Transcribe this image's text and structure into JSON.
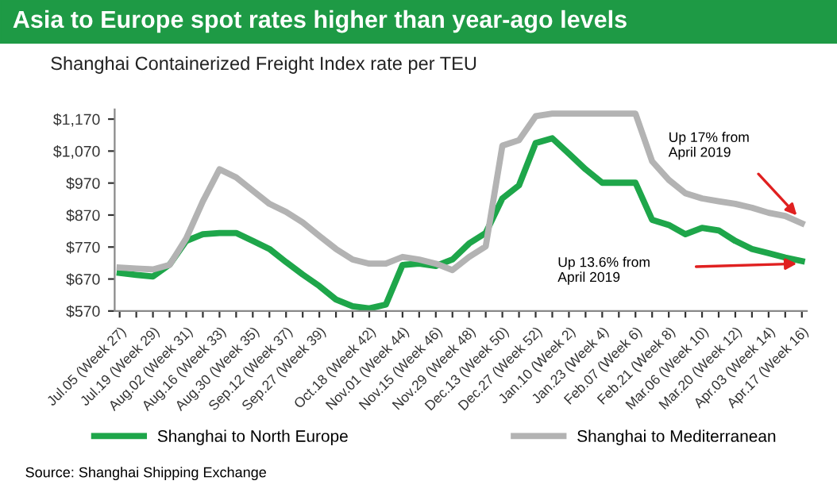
{
  "chart_data": {
    "type": "line",
    "title": "Asia to Europe spot rates higher than year-ago levels",
    "subtitle": "Shanghai Containerized Freight Index rate per TEU",
    "categories": [
      "Jul.05 (Week 27)",
      null,
      "Jul.19 (Week 29)",
      null,
      "Aug.02 (Week 31)",
      null,
      "Aug.16 (Week 33)",
      null,
      "Aug.30 (Week 35)",
      null,
      "Sep.12 (Week 37)",
      null,
      "Sep.27 (Week 39)",
      null,
      null,
      "Oct.18 (Week 42)",
      null,
      "Nov.01 (Week 44)",
      null,
      "Nov.15 (Week 46)",
      null,
      "Nov.29 (Week 48)",
      null,
      "Dec.13 (Week 50)",
      null,
      "Dec.27 (Week 52)",
      null,
      "Jan.10 (Week 2)",
      null,
      "Jan.23 (Week 4)",
      null,
      "Feb.07 (Week 6)",
      null,
      "Feb.21 (Week 8)",
      null,
      "Mar.06 (Week 10)",
      null,
      "Mar.20 (Week 12)",
      null,
      "Apr.03 (Week 14)",
      null,
      "Apr.17 (Week 16)"
    ],
    "series": [
      {
        "name": "Shanghai to North Europe",
        "color": "#1ea64a",
        "values": [
          689,
          683,
          678,
          715,
          789,
          810,
          814,
          814,
          789,
          764,
          723,
          684,
          648,
          606,
          585,
          578,
          590,
          714,
          718,
          711,
          731,
          781,
          814,
          922,
          963,
          1095,
          1110,
          1062,
          1013,
          971,
          971,
          971,
          855,
          839,
          810,
          830,
          822,
          789,
          764,
          751,
          737,
          726
        ]
      },
      {
        "name": "Shanghai to Mediterranean",
        "color": "#b3b3b3",
        "values": [
          706,
          703,
          700,
          714,
          797,
          913,
          1013,
          988,
          946,
          905,
          880,
          847,
          805,
          764,
          731,
          718,
          718,
          739,
          731,
          718,
          698,
          739,
          772,
          1087,
          1104,
          1179,
          1187,
          1187,
          1187,
          1187,
          1187,
          1187,
          1038,
          980,
          938,
          922,
          913,
          905,
          893,
          877,
          867,
          844
        ]
      }
    ],
    "ylim": [
      570,
      1200
    ],
    "yticks": [
      {
        "value": 570,
        "label": "$570"
      },
      {
        "value": 670,
        "label": "$670"
      },
      {
        "value": 770,
        "label": "$770"
      },
      {
        "value": 870,
        "label": "$870"
      },
      {
        "value": 970,
        "label": "$970"
      },
      {
        "value": 1070,
        "label": "$1,070"
      },
      {
        "value": 1170,
        "label": "$1,170"
      }
    ],
    "grid": false,
    "legend": "bottom",
    "marker": "none",
    "line_style": "solid",
    "annotations": [
      "Up 17% from\nApril 2019",
      "Up 13.6% from\nApril 2019",
      "Source: Shanghai Shipping Exchange"
    ]
  }
}
